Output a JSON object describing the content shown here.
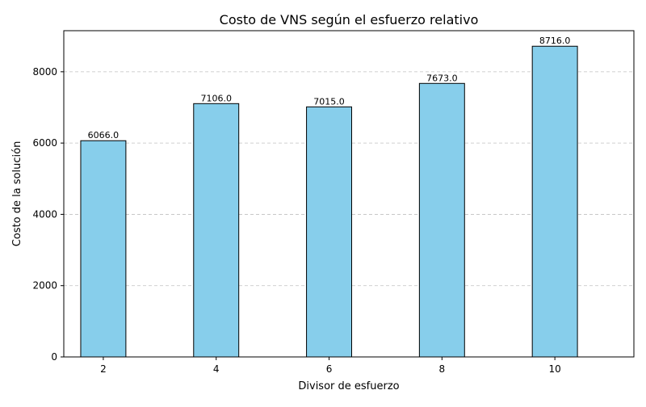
{
  "chart_data": {
    "type": "bar",
    "title": "Costo de VNS según el esfuerzo relativo",
    "xlabel": "Divisor de esfuerzo",
    "ylabel": "Costo de la solución",
    "categories": [
      "2",
      "4",
      "6",
      "8",
      "10"
    ],
    "values": [
      6066.0,
      7106.0,
      7015.0,
      7673.0,
      8716.0
    ],
    "value_labels": [
      "6066.0",
      "7106.0",
      "7015.0",
      "7673.0",
      "8716.0"
    ],
    "x_values": [
      2,
      4,
      6,
      8,
      10
    ],
    "xlim": [
      1.3,
      11.4
    ],
    "ylim": [
      0,
      9152
    ],
    "yticks": [
      0,
      2000,
      4000,
      6000,
      8000
    ],
    "ytick_labels": [
      "0",
      "2000",
      "4000",
      "6000",
      "8000"
    ],
    "grid": "y-dashed",
    "bar_color": "#87ceeb",
    "bar_edge_color": "#000000",
    "grid_color": "#c0c0c0"
  }
}
